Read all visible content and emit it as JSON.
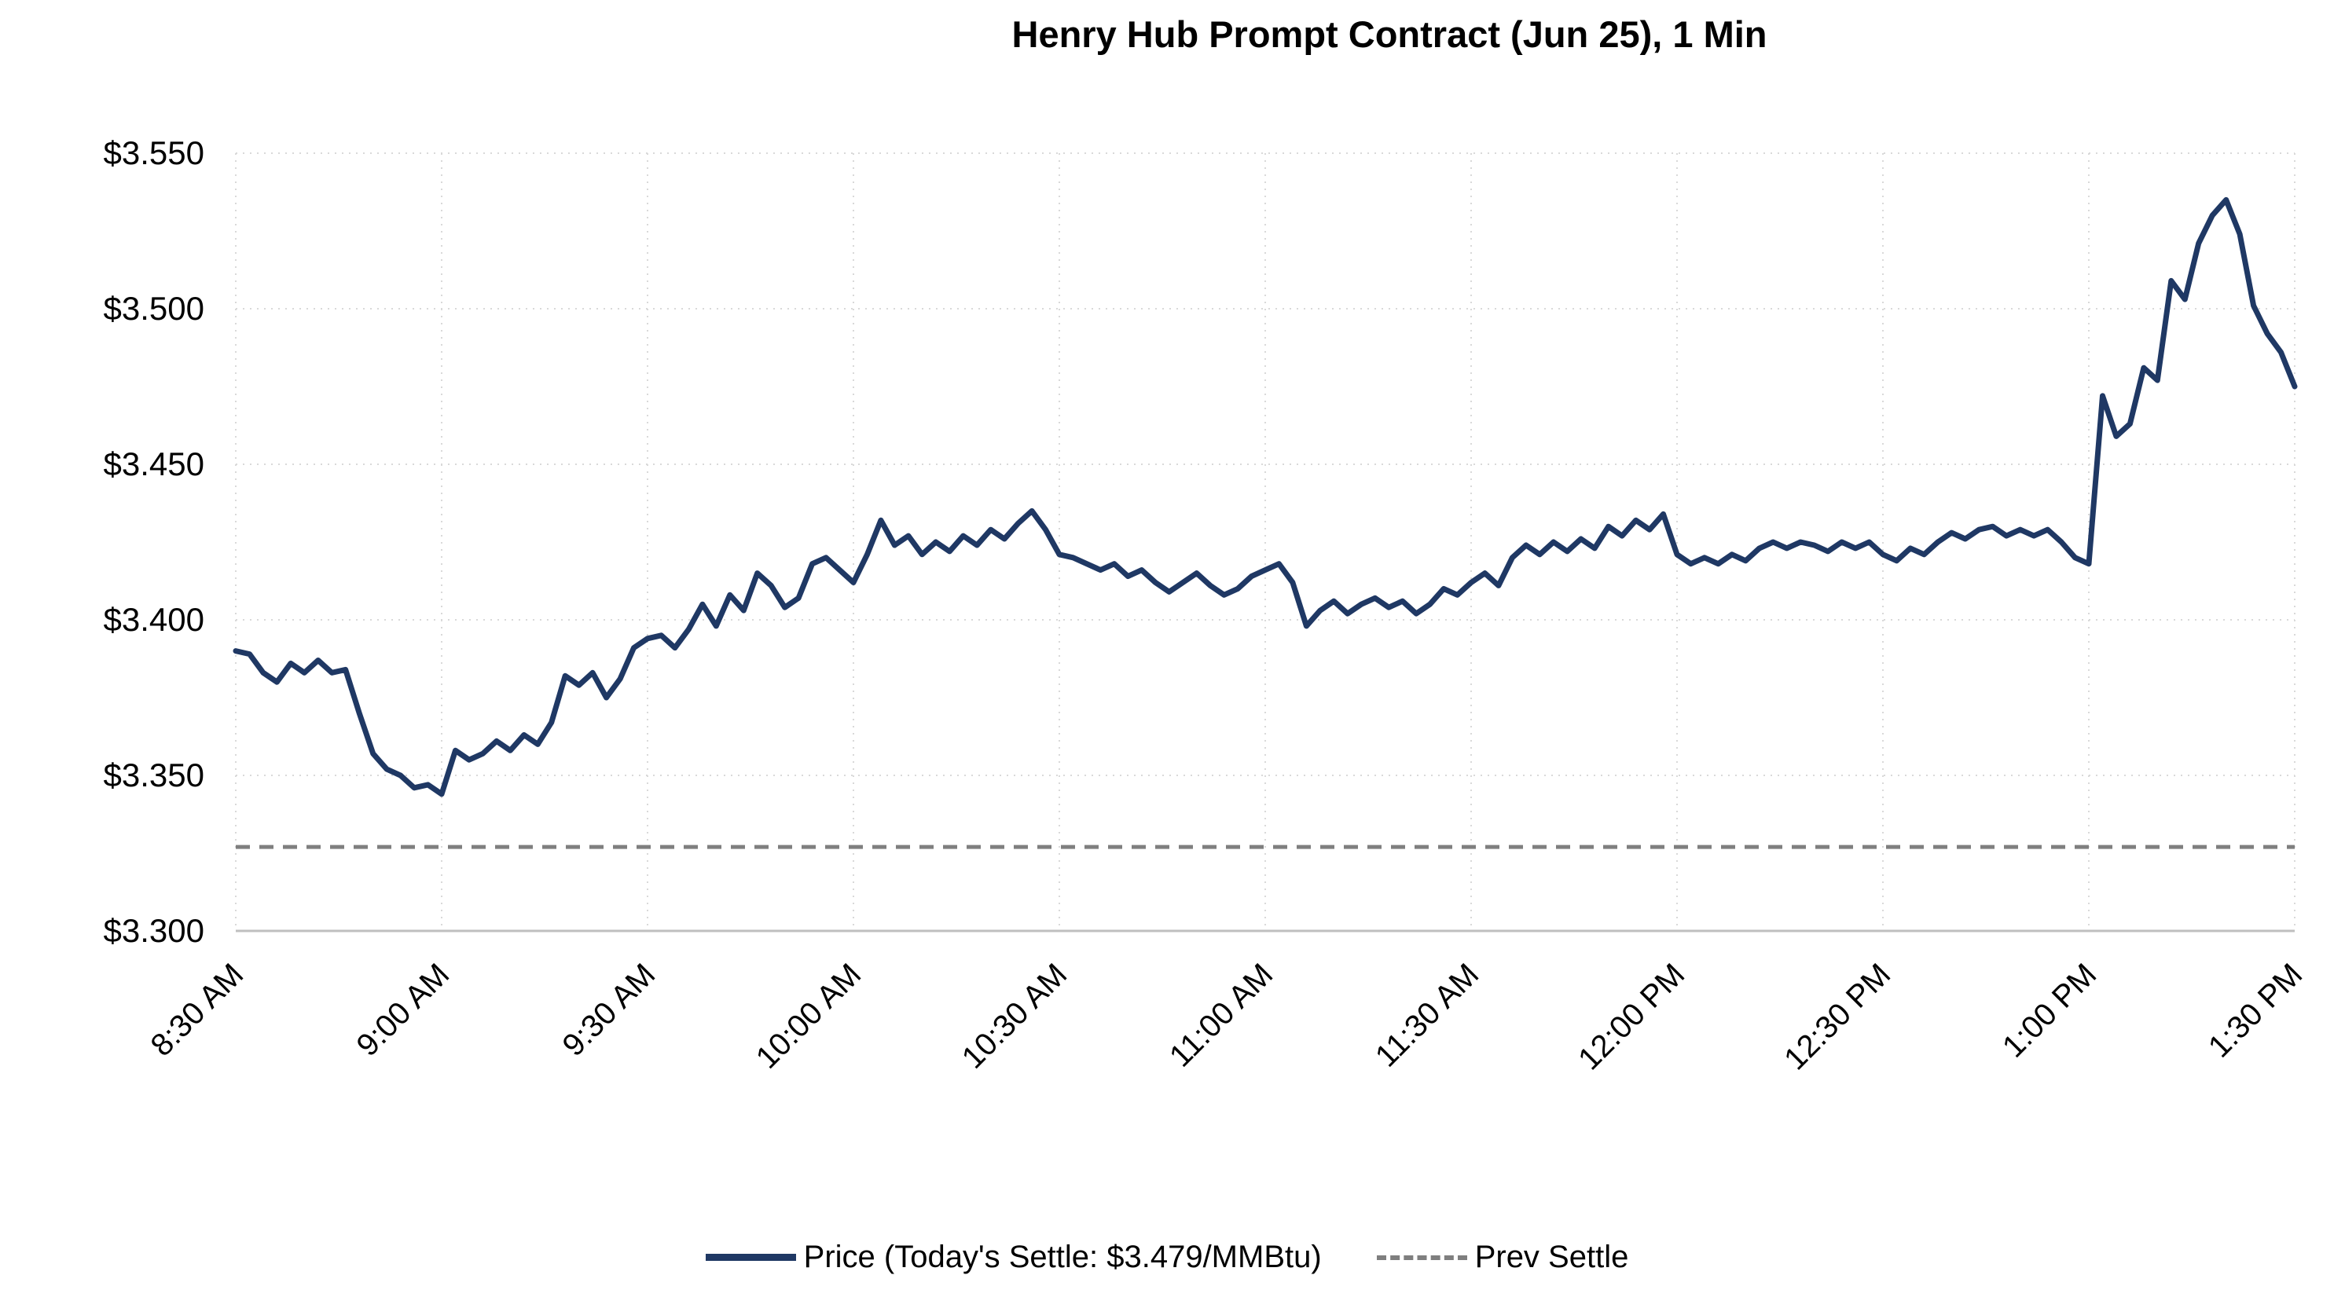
{
  "title": "Henry Hub Prompt Contract (Jun 25), 1 Min",
  "legend": {
    "price_label": "Price (Today's Settle: $3.479/MMBtu)",
    "prev_settle_label": "Prev Settle"
  },
  "colors": {
    "price_line": "#1F3864",
    "prev_settle_line": "#7F7F7F",
    "gridline": "#D9D9D9",
    "axis": "#BFBFBF",
    "text": "#000000"
  },
  "chart_data": {
    "type": "line",
    "title": "Henry Hub Prompt Contract (Jun 25), 1 Min",
    "xlabel": "",
    "ylabel": "",
    "grid": true,
    "legend_position": "bottom",
    "ylim": [
      3.3,
      3.55
    ],
    "y_ticks": [
      3.3,
      3.35,
      3.4,
      3.45,
      3.5,
      3.55
    ],
    "y_tick_labels": [
      "$3.300",
      "$3.350",
      "$3.400",
      "$3.450",
      "$3.500",
      "$3.550"
    ],
    "x_tick_labels": [
      "8:30 AM",
      "9:00 AM",
      "9:30 AM",
      "10:00 AM",
      "10:30 AM",
      "11:00 AM",
      "11:30 AM",
      "12:00 PM",
      "12:30 PM",
      "1:00 PM",
      "1:30 PM"
    ],
    "x_tick_minutes": [
      0,
      30,
      60,
      90,
      120,
      150,
      180,
      210,
      240,
      270,
      300
    ],
    "x_total_minutes": 300,
    "start_time": "8:30 AM",
    "end_time": "1:30 PM",
    "interval_minutes": 2,
    "prev_settle": 3.327,
    "todays_settle": 3.479,
    "series": [
      {
        "name": "Price",
        "values": [
          3.39,
          3.389,
          3.383,
          3.38,
          3.386,
          3.383,
          3.387,
          3.383,
          3.384,
          3.37,
          3.357,
          3.352,
          3.35,
          3.346,
          3.347,
          3.344,
          3.358,
          3.355,
          3.357,
          3.361,
          3.358,
          3.363,
          3.36,
          3.367,
          3.382,
          3.379,
          3.383,
          3.375,
          3.381,
          3.391,
          3.394,
          3.395,
          3.391,
          3.397,
          3.405,
          3.398,
          3.408,
          3.403,
          3.415,
          3.411,
          3.404,
          3.407,
          3.418,
          3.42,
          3.416,
          3.412,
          3.421,
          3.432,
          3.424,
          3.427,
          3.421,
          3.425,
          3.422,
          3.427,
          3.424,
          3.429,
          3.426,
          3.431,
          3.435,
          3.429,
          3.421,
          3.42,
          3.418,
          3.416,
          3.418,
          3.414,
          3.416,
          3.412,
          3.409,
          3.412,
          3.415,
          3.411,
          3.408,
          3.41,
          3.414,
          3.416,
          3.418,
          3.412,
          3.398,
          3.403,
          3.406,
          3.402,
          3.405,
          3.407,
          3.404,
          3.406,
          3.402,
          3.405,
          3.41,
          3.408,
          3.412,
          3.415,
          3.411,
          3.42,
          3.424,
          3.421,
          3.425,
          3.422,
          3.426,
          3.423,
          3.43,
          3.427,
          3.432,
          3.429,
          3.434,
          3.421,
          3.418,
          3.42,
          3.418,
          3.421,
          3.419,
          3.423,
          3.425,
          3.423,
          3.425,
          3.424,
          3.422,
          3.425,
          3.423,
          3.425,
          3.421,
          3.419,
          3.423,
          3.421,
          3.425,
          3.428,
          3.426,
          3.429,
          3.43,
          3.427,
          3.429,
          3.427,
          3.429,
          3.425,
          3.42,
          3.418,
          3.472,
          3.459,
          3.463,
          3.481,
          3.477,
          3.509,
          3.503,
          3.521,
          3.53,
          3.535,
          3.524,
          3.501,
          3.492,
          3.486,
          3.475
        ]
      }
    ]
  }
}
